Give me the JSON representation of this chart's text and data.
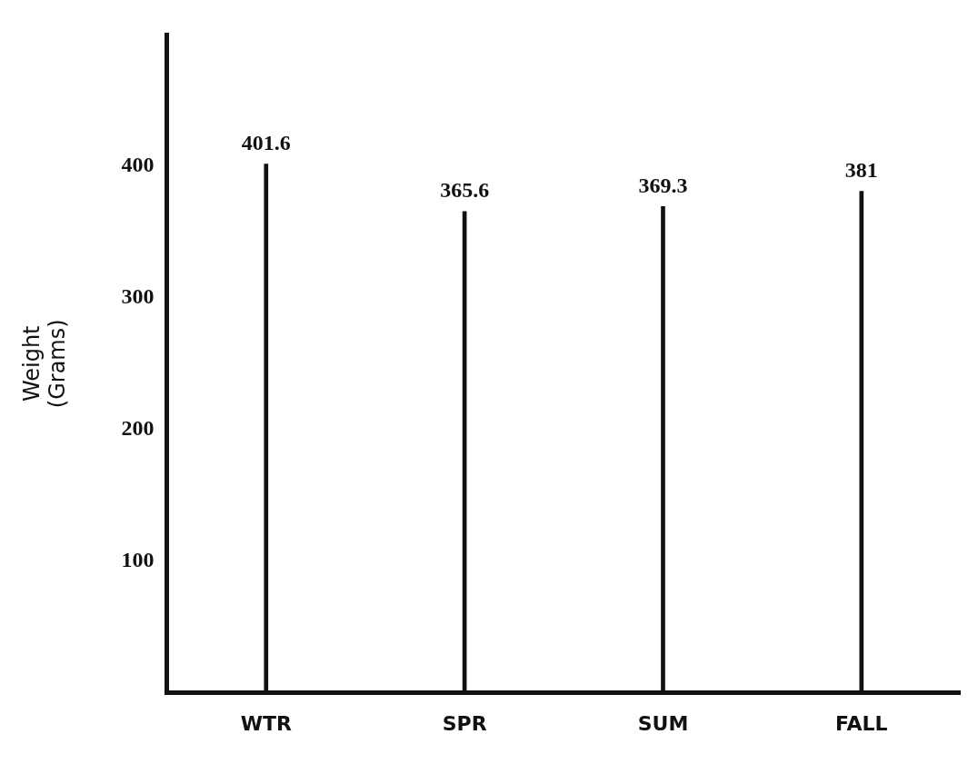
{
  "chart_data": {
    "type": "bar",
    "categories": [
      "WTR",
      "SPR",
      "SUM",
      "FALL"
    ],
    "values": [
      401.6,
      365.6,
      369.3,
      381
    ],
    "color": "#111111",
    "ylabel": "Weight\n(Grams)",
    "ylim": [
      0,
      500
    ],
    "yticks": [
      100,
      200,
      300,
      400
    ],
    "grid": false,
    "legend": false,
    "data_labels": true
  }
}
